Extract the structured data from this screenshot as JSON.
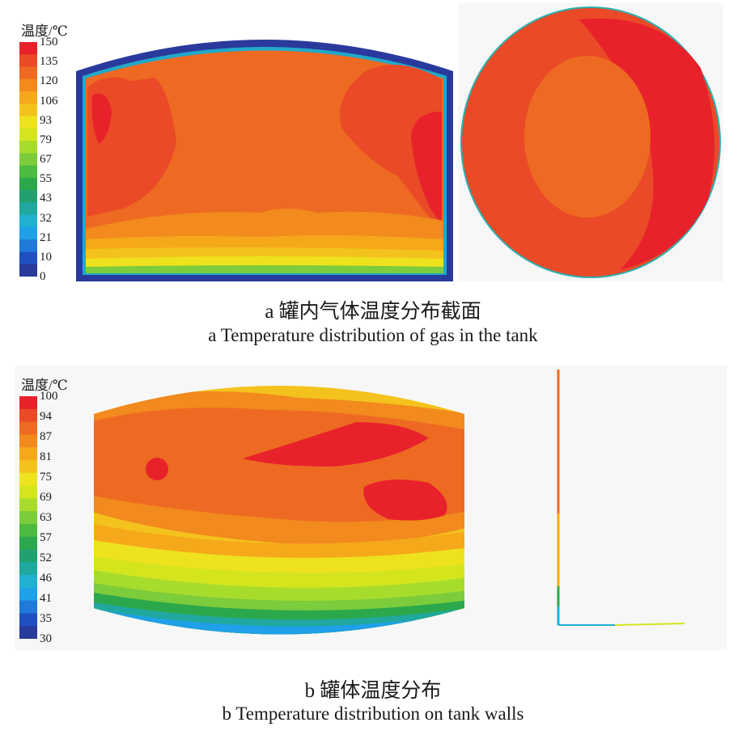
{
  "panel_a": {
    "legend": {
      "title": "温度/℃",
      "ticks": [
        "150",
        "135",
        "120",
        "106",
        "93",
        "79",
        "67",
        "55",
        "43",
        "32",
        "21",
        "10",
        "0"
      ],
      "colors": [
        "#e8222b",
        "#ea4a27",
        "#ee6a22",
        "#f28a1e",
        "#f5a91a",
        "#f4c21c",
        "#eee21e",
        "#d4e51e",
        "#a8dc2c",
        "#7ccc3c",
        "#4cbb40",
        "#2ca84c",
        "#22a070",
        "#20a8a0",
        "#20b0d0",
        "#1fa0e8",
        "#1f7ad8",
        "#2050c0",
        "#283a9a"
      ]
    },
    "caption_zh": "a 罐内气体温度分布截面",
    "caption_en": "a Temperature distribution of gas in the tank"
  },
  "panel_b": {
    "legend": {
      "title": "温度/℃",
      "ticks": [
        "100",
        "94",
        "87",
        "81",
        "75",
        "69",
        "63",
        "57",
        "52",
        "46",
        "41",
        "35",
        "30"
      ],
      "colors": [
        "#e8222b",
        "#ea4a27",
        "#ee6a22",
        "#f28a1e",
        "#f5a91a",
        "#f4c21c",
        "#eee21e",
        "#d4e51e",
        "#a8dc2c",
        "#7ccc3c",
        "#4cbb40",
        "#2ca84c",
        "#22a070",
        "#20a8a0",
        "#20b0d0",
        "#1fa0e8",
        "#1f7ad8",
        "#2050c0",
        "#283a9a"
      ]
    },
    "caption_zh": "b 罐体温度分布",
    "caption_en": "b Temperature distribution on tank walls"
  }
}
